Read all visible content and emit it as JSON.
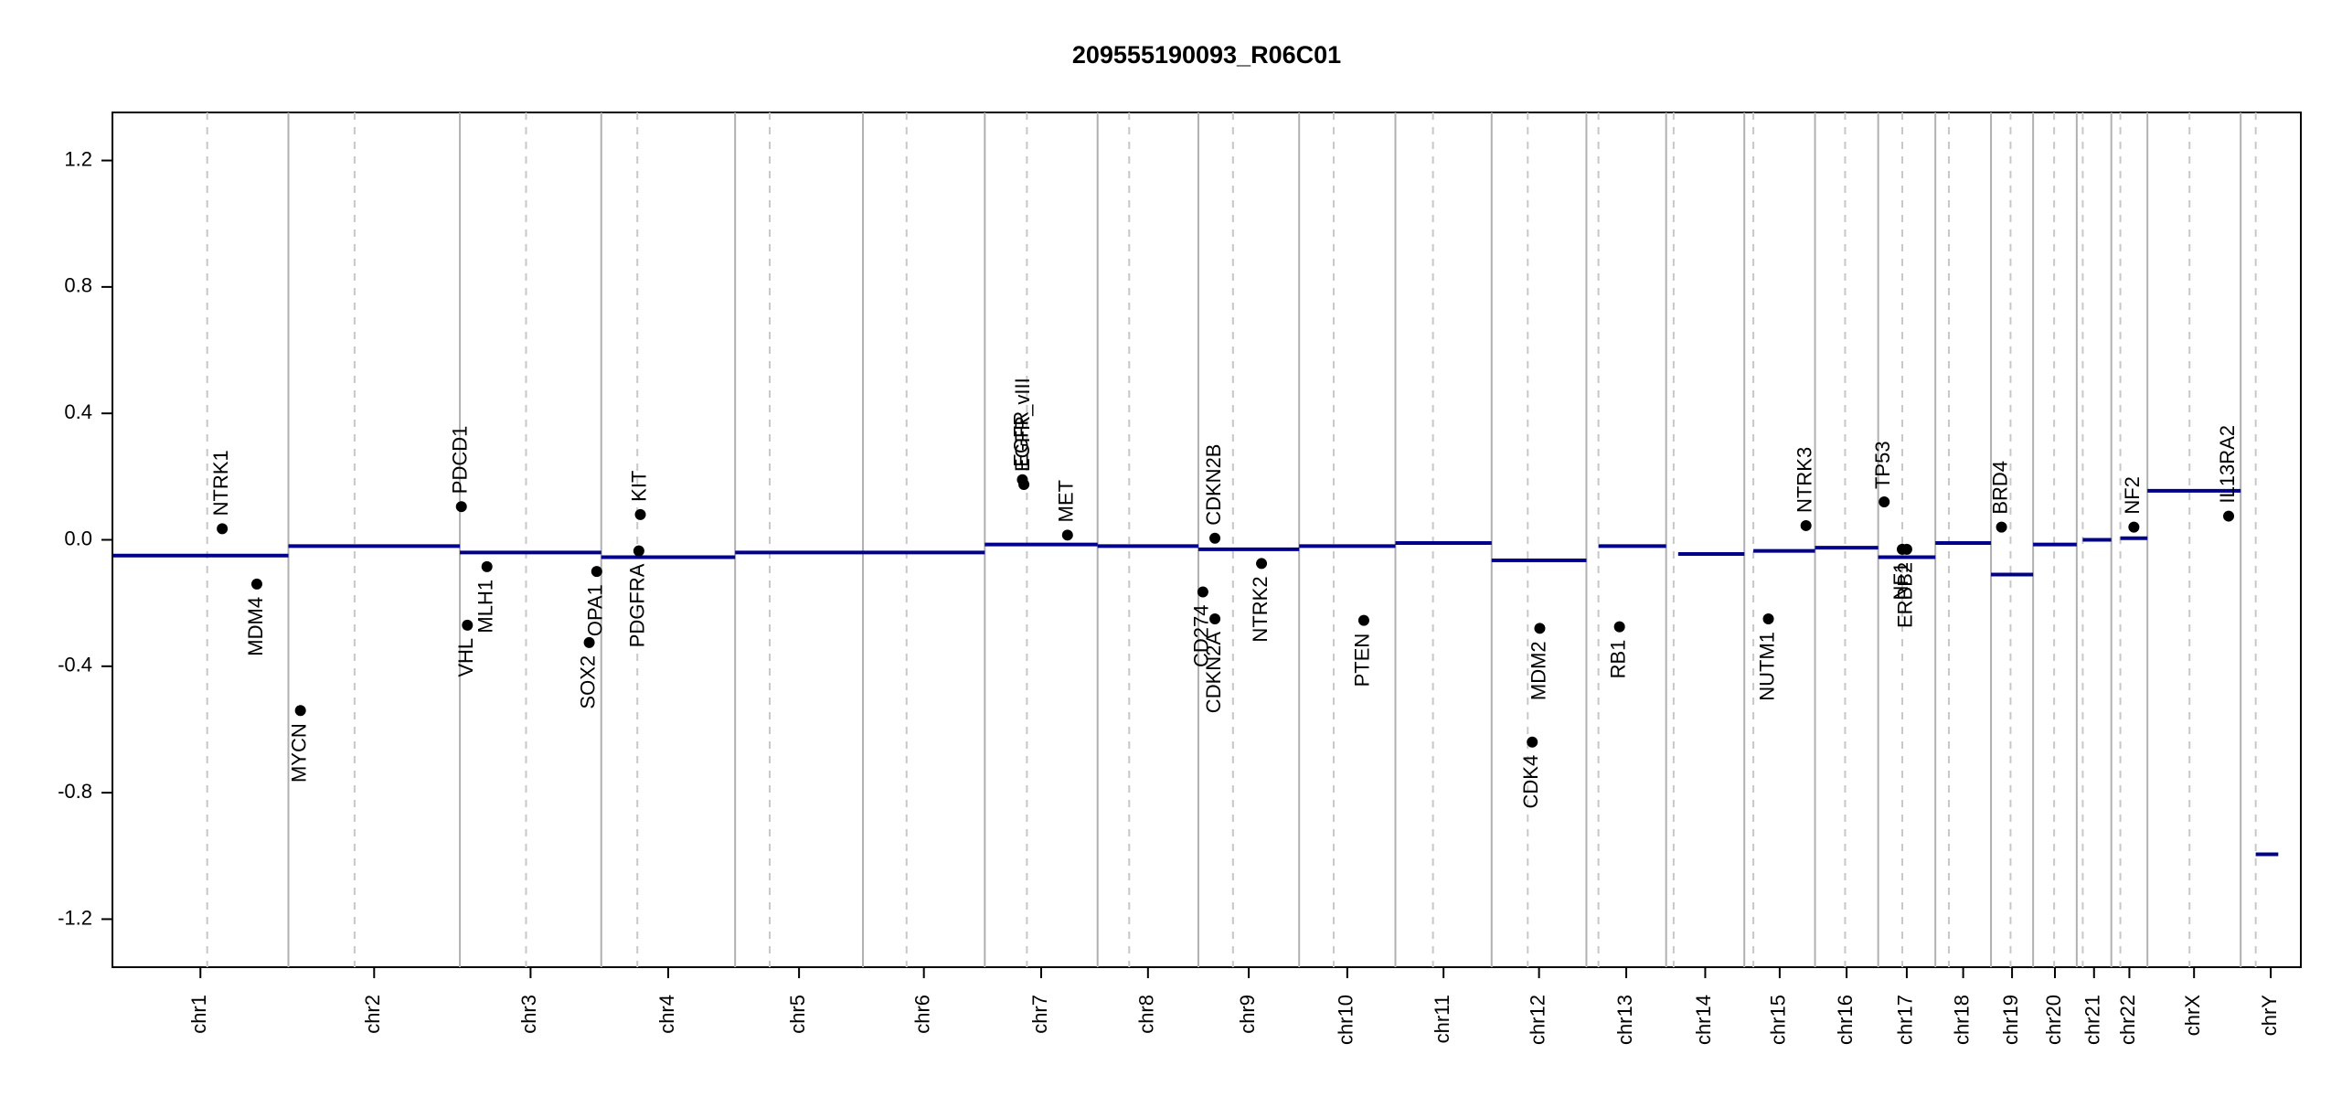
{
  "chart_data": {
    "type": "cnv",
    "title": "209555190093_R06C01",
    "ylim": [
      -1.352,
      1.352
    ],
    "yticks": [
      -1.2,
      -0.8,
      -0.4,
      {
        "value": 0,
        "label": "0.0"
      },
      0.4,
      0.8,
      1.2
    ],
    "xlim": [
      0,
      1455
    ],
    "chromosomes": {
      "names": [
        "chr1",
        "chr2",
        "chr3",
        "chr4",
        "chr5",
        "chr6",
        "chr7",
        "chr8",
        "chr9",
        "chr10",
        "chr11",
        "chr12",
        "chr13",
        "chr14",
        "chr15",
        "chr16",
        "chr17",
        "chr18",
        "chr19",
        "chr20",
        "chr21",
        "chr22",
        "chrX",
        "chrY"
      ],
      "starts": [
        0,
        117,
        231,
        325,
        414,
        499,
        580,
        655,
        722,
        789,
        853,
        917,
        980,
        1033,
        1085,
        1132,
        1174,
        1212,
        1249,
        1277,
        1306,
        1329,
        1353,
        1415
      ],
      "ends": [
        117,
        231,
        325,
        414,
        499,
        580,
        655,
        722,
        789,
        853,
        917,
        980,
        1033,
        1085,
        1132,
        1174,
        1212,
        1249,
        1277,
        1306,
        1329,
        1353,
        1415,
        1455
      ],
      "centromeres": [
        63,
        161,
        275,
        349,
        437,
        528,
        608,
        676,
        745,
        812,
        878,
        941,
        988,
        1038,
        1091,
        1152,
        1190,
        1221,
        1262,
        1291,
        1310,
        1335,
        1381,
        1425
      ]
    },
    "segments": {
      "color": "#00008b",
      "starts": [
        0,
        117,
        231,
        325,
        414,
        499,
        580,
        655,
        722,
        789,
        853,
        917,
        988,
        1041,
        1091,
        1132,
        1174,
        1212,
        1249,
        1277,
        1310,
        1335,
        1353,
        1425
      ],
      "ends": [
        117,
        231,
        325,
        414,
        499,
        580,
        655,
        722,
        789,
        853,
        917,
        980,
        1033,
        1085,
        1132,
        1174,
        1212,
        1249,
        1277,
        1306,
        1329,
        1353,
        1415,
        1440
      ],
      "values": [
        -0.05,
        -0.02,
        -0.04,
        -0.055,
        -0.04,
        -0.04,
        -0.015,
        -0.02,
        -0.03,
        -0.02,
        -0.01,
        -0.065,
        -0.02,
        -0.045,
        -0.035,
        -0.025,
        -0.055,
        -0.01,
        -0.11,
        -0.015,
        0.0,
        0.005,
        0.155,
        -0.995
      ]
    },
    "genes": {
      "color": "#000000",
      "names": [
        "NTRK1",
        "MDM4",
        "MYCN",
        "PDCD1",
        "VHL",
        "MLH1",
        "SOX2",
        "OPA1",
        "KIT",
        "PDGFRA",
        "EGFR",
        "EGFR_vIII",
        "MET",
        "CDKN2B",
        "CD274",
        "CDKN2A",
        "NTRK2",
        "PTEN",
        "CDK4",
        "MDM2",
        "RB1",
        "NUTM1",
        "NTRK3",
        "TP53",
        "NF1",
        "ERBB2",
        "BRD4",
        "NF2",
        "IL13RA2"
      ],
      "x": [
        73,
        96,
        125,
        232,
        236,
        249,
        317,
        322,
        351,
        350,
        605,
        606,
        635,
        733,
        725,
        733,
        764,
        832,
        944,
        949,
        1002,
        1101,
        1126,
        1178,
        1190,
        1193,
        1256,
        1344,
        1407
      ],
      "values": [
        0.035,
        -0.14,
        -0.54,
        0.105,
        -0.27,
        -0.085,
        -0.325,
        -0.1,
        0.08,
        -0.035,
        0.19,
        0.175,
        0.015,
        0.005,
        -0.165,
        -0.25,
        -0.075,
        -0.255,
        -0.64,
        -0.28,
        -0.275,
        -0.25,
        0.045,
        0.12,
        -0.03,
        -0.03,
        0.04,
        0.04,
        0.075
      ]
    }
  }
}
